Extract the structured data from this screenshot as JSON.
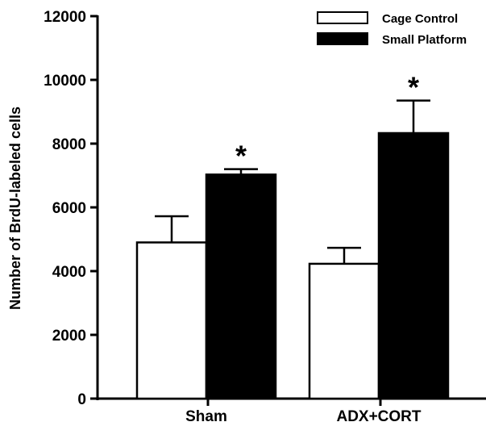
{
  "chart_data": {
    "type": "bar",
    "title": "",
    "xlabel": "",
    "ylabel": "Number of BrdU-labeled cells",
    "categories": [
      "Sham",
      "ADX+CORT"
    ],
    "ylim": [
      0,
      12000
    ],
    "yticks": [
      0,
      2000,
      4000,
      6000,
      8000,
      10000,
      12000
    ],
    "ytick_labels": [
      "0",
      "2000",
      "4000",
      "6000",
      "8000",
      "10000",
      "12000"
    ],
    "grid": false,
    "legend_position": "top-right",
    "series": [
      {
        "name": "Cage Control",
        "fill": "#ffffff",
        "values": [
          4900,
          4230
        ],
        "error_upper": [
          820,
          500
        ],
        "significance": [
          "",
          ""
        ]
      },
      {
        "name": "Small Platform",
        "fill": "#000000",
        "values": [
          7030,
          8330
        ],
        "error_upper": [
          170,
          1020
        ],
        "significance": [
          "*",
          "*"
        ]
      }
    ]
  }
}
